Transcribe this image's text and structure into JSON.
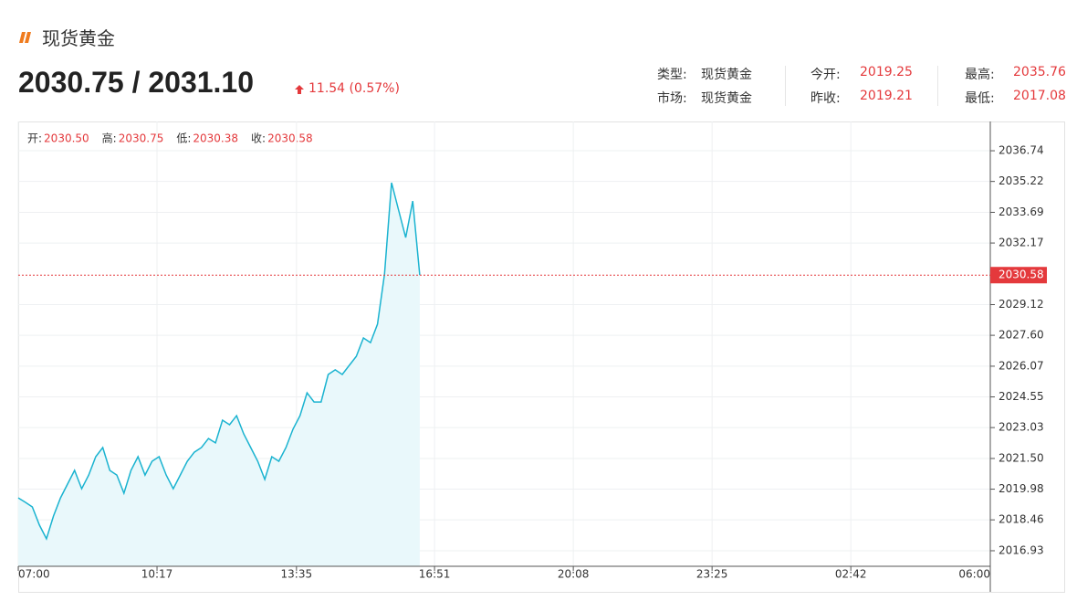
{
  "header": {
    "title": "现货黄金",
    "price": "2030.75 / 2031.10",
    "change": "11.54 (0.57%)",
    "info": [
      {
        "label": "类型:",
        "value": "现货黄金"
      },
      {
        "label": "今开:",
        "value": "2019.25"
      },
      {
        "label": "最高:",
        "value": "2035.76"
      },
      {
        "label": "市场:",
        "value": "现货黄金"
      },
      {
        "label": "昨收:",
        "value": "2019.21"
      },
      {
        "label": "最低:",
        "value": "2017.08"
      }
    ]
  },
  "chart_data": {
    "type": "area",
    "ohlc": [
      {
        "label": "开:",
        "value": "2030.50"
      },
      {
        "label": "高:",
        "value": "2030.75"
      },
      {
        "label": "低:",
        "value": "2030.38"
      },
      {
        "label": "收:",
        "value": "2030.58"
      }
    ],
    "x": [
      "07:00",
      "07:10",
      "07:20",
      "07:30",
      "07:40",
      "07:50",
      "08:00",
      "08:10",
      "08:20",
      "08:30",
      "08:40",
      "08:50",
      "09:00",
      "09:10",
      "09:20",
      "09:30",
      "09:40",
      "09:50",
      "10:00",
      "10:10",
      "10:20",
      "10:30",
      "10:40",
      "10:50",
      "11:00",
      "11:10",
      "11:20",
      "11:30",
      "11:40",
      "11:50",
      "12:00",
      "12:10",
      "12:20",
      "12:30",
      "12:40",
      "12:50",
      "13:00",
      "13:10",
      "13:20",
      "13:30",
      "13:40",
      "13:50",
      "14:00",
      "14:10",
      "14:20",
      "14:30",
      "14:40",
      "14:50",
      "15:00",
      "15:10",
      "15:20",
      "15:30",
      "15:40",
      "15:50",
      "16:00",
      "16:10",
      "16:20",
      "16:30"
    ],
    "values": [
      2019.55,
      2019.33,
      2019.1,
      2018.2,
      2017.52,
      2018.65,
      2019.55,
      2020.23,
      2020.91,
      2020.0,
      2020.68,
      2021.59,
      2022.04,
      2020.91,
      2020.68,
      2019.78,
      2020.91,
      2021.59,
      2020.68,
      2021.36,
      2021.59,
      2020.68,
      2020.0,
      2020.68,
      2021.36,
      2021.81,
      2022.04,
      2022.49,
      2022.27,
      2023.4,
      2023.17,
      2023.62,
      2022.72,
      2022.04,
      2021.36,
      2020.46,
      2021.59,
      2021.36,
      2022.04,
      2022.95,
      2023.62,
      2024.75,
      2024.3,
      2024.3,
      2025.66,
      2025.89,
      2025.66,
      2026.11,
      2026.56,
      2027.47,
      2027.24,
      2028.15,
      2030.63,
      2035.16,
      2033.8,
      2032.44,
      2034.25,
      2030.58
    ],
    "color": "#1ab3d0",
    "fill": "#e9f8fb",
    "last_price": 2030.58,
    "last_color": "#e4393c",
    "xlim": [
      "07:00",
      "06:00"
    ],
    "xticks": [
      "07:00",
      "10:17",
      "13:35",
      "16:51",
      "20:08",
      "23:25",
      "02:42",
      "06:00"
    ],
    "ylim": [
      2016.16,
      2038.19
    ],
    "yticks": [
      2036.74,
      2035.22,
      2033.69,
      2032.17,
      2029.12,
      {
        "value": 2027.6,
        "label": "2027.60"
      },
      2026.07,
      2024.55,
      2023.03,
      {
        "value": 2021.5,
        "label": "2021.50"
      },
      2019.98,
      2018.46,
      2016.93
    ],
    "grid": true
  }
}
